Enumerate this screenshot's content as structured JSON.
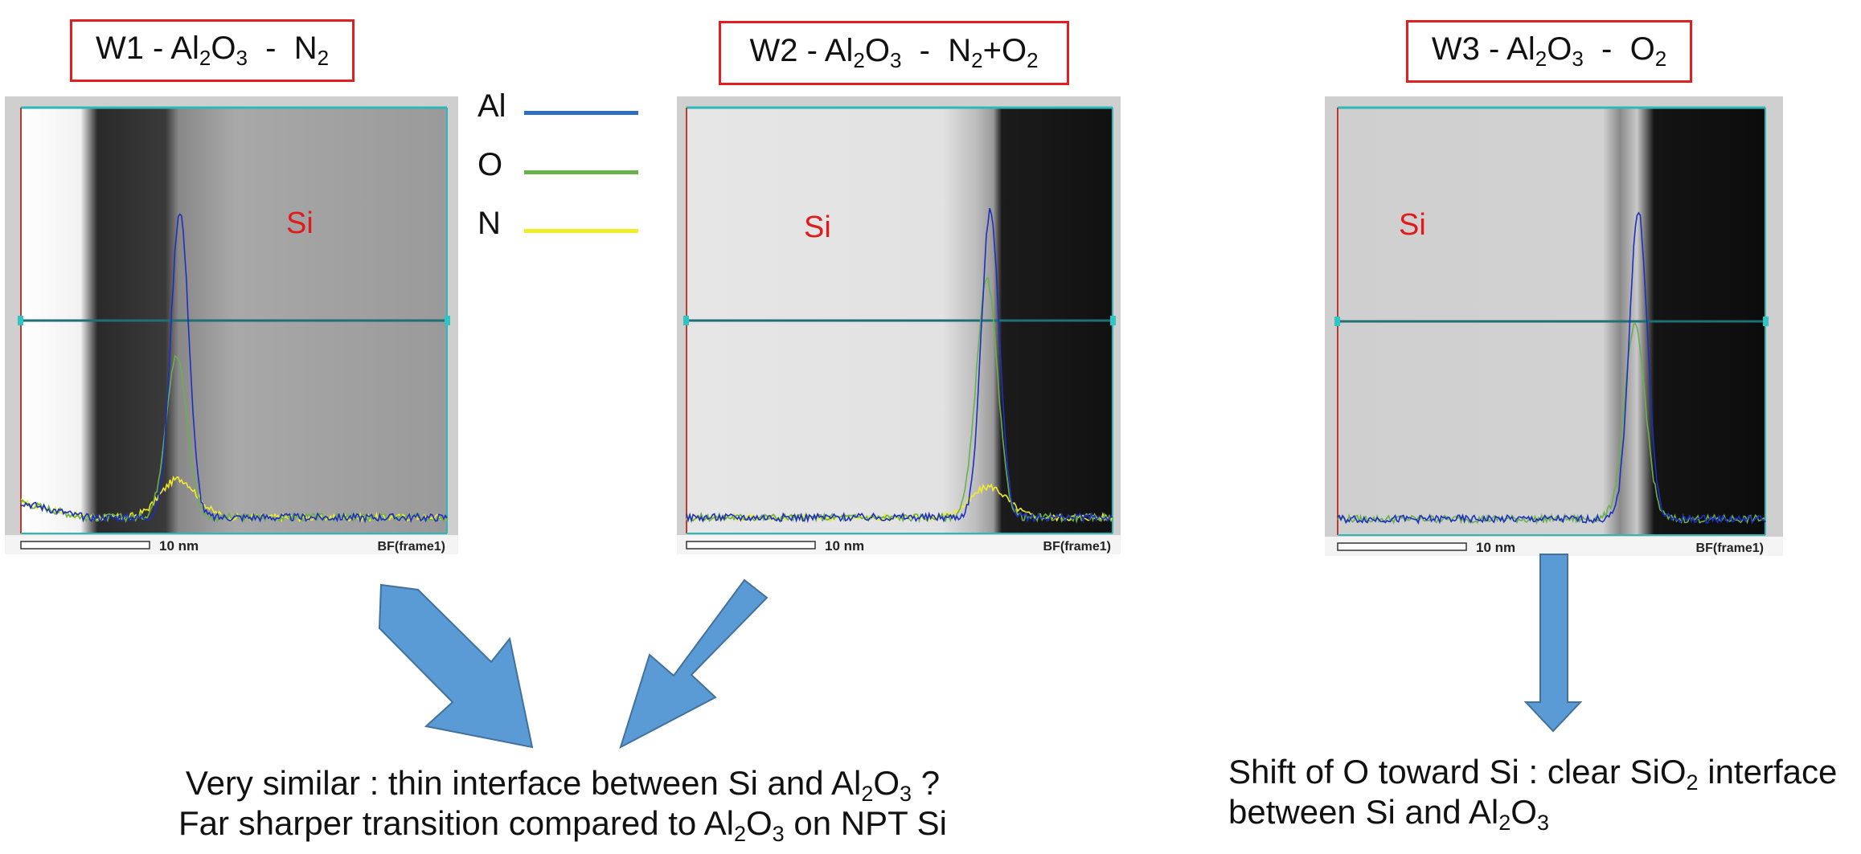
{
  "panels": [
    {
      "id": "w1",
      "title": {
        "prefix": "W1 - Al",
        "s1": "2",
        "mid": "O",
        "s2": "3",
        "sep": "  -  ",
        "gas": "N",
        "gs": "2",
        "gas2": "",
        "gs2": ""
      },
      "region_label": "Si",
      "scale_label": "10 nm",
      "frame_label": "BF(frame1)",
      "profile": {
        "peak_x": 0.37,
        "peak_al": 0.8,
        "peak_o": 0.42,
        "peak_n": 0.1,
        "left_bright": true
      }
    },
    {
      "id": "w2",
      "title": {
        "prefix": "W2 - Al",
        "s1": "2",
        "mid": "O",
        "s2": "3",
        "sep": "  -  ",
        "gas": "N",
        "gs": "2",
        "gas2": "+O",
        "gs2": "2"
      },
      "region_label": "Si",
      "scale_label": "10 nm",
      "frame_label": "BF(frame1)",
      "profile": {
        "peak_x": 0.71,
        "peak_al": 0.8,
        "peak_o": 0.62,
        "peak_n": 0.08,
        "left_bright": false
      }
    },
    {
      "id": "w3",
      "title": {
        "prefix": "W3 - Al",
        "s1": "2",
        "mid": "O",
        "s2": "3",
        "sep": "  -  ",
        "gas": "O",
        "gs": "2",
        "gas2": "",
        "gs2": ""
      },
      "region_label": "Si",
      "scale_label": "10 nm",
      "frame_label": "BF(frame1)",
      "profile": {
        "peak_x": 0.7,
        "peak_al": 0.8,
        "peak_o": 0.5,
        "peak_n": 0.0,
        "left_bright": false
      }
    }
  ],
  "legend": [
    {
      "label": "Al",
      "color": "#2e6fc0"
    },
    {
      "label": "O",
      "color": "#6ab04c"
    },
    {
      "label": "N",
      "color": "#f2ec2a"
    }
  ],
  "arrow_color": "#5b9bd5",
  "captions": {
    "left_line1": {
      "a": "Very similar : thin interface between Si and Al",
      "s1": "2",
      "b": "O",
      "s2": "3",
      "c": " ?"
    },
    "left_line2": {
      "a": "Far sharper transition compared to Al",
      "s1": "2",
      "b": "O",
      "s2": "3",
      "c": " on NPT Si"
    },
    "right_line1": {
      "a": "Shift of O toward Si : clear SiO",
      "s1": "2",
      "b": " interface"
    },
    "right_line2": {
      "a": "between Si and Al",
      "s1": "2",
      "b": "O",
      "s2": "3"
    }
  }
}
